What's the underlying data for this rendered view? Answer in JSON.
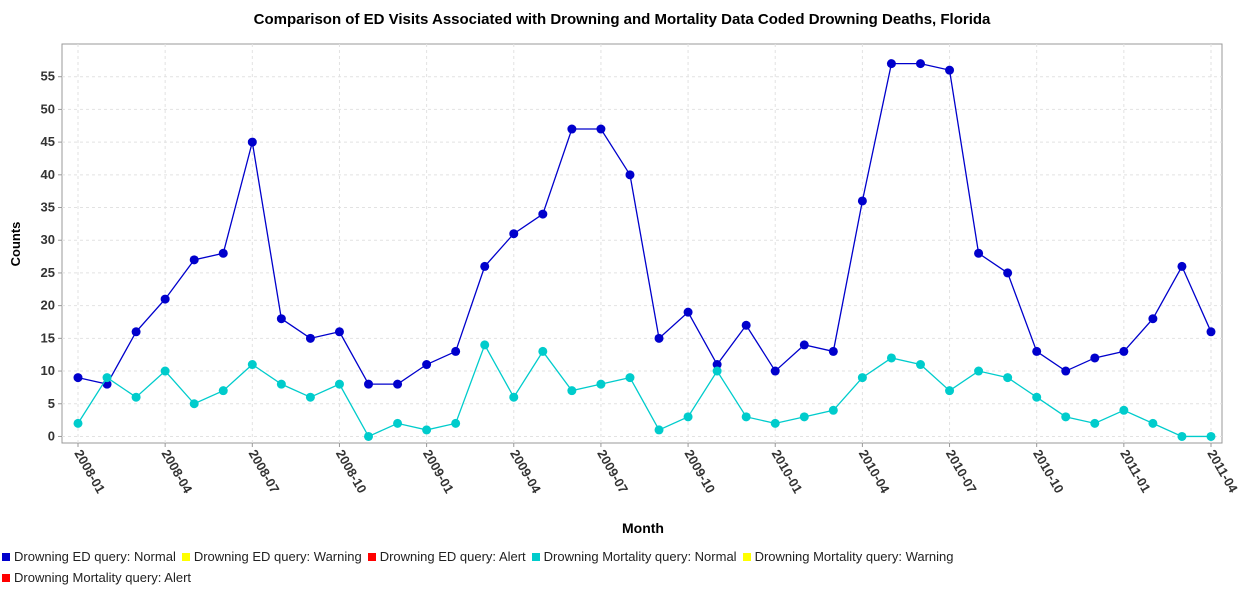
{
  "chart_data": {
    "type": "line",
    "title": "Comparison of ED Visits Associated with Drowning and Mortality Data Coded Drowning Deaths, Florida",
    "xlabel": "Month",
    "ylabel": "Counts",
    "categories": [
      "2008-01",
      null,
      null,
      "2008-04",
      null,
      null,
      "2008-07",
      null,
      null,
      "2008-10",
      null,
      null,
      "2009-01",
      null,
      null,
      "2009-04",
      null,
      null,
      "2009-07",
      null,
      null,
      "2009-10",
      null,
      null,
      "2010-01",
      null,
      null,
      "2010-04",
      null,
      null,
      "2010-07",
      null,
      null,
      "2010-10",
      null,
      null,
      "2011-01",
      null,
      null,
      "2011-04"
    ],
    "series": [
      {
        "name": "Drowning ED query: Normal",
        "color": "#0000cc",
        "values": [
          9,
          8,
          16,
          21,
          27,
          28,
          45,
          18,
          15,
          16,
          8,
          8,
          11,
          13,
          26,
          31,
          34,
          47,
          47,
          40,
          15,
          19,
          11,
          17,
          10,
          14,
          13,
          36,
          57,
          57,
          56,
          28,
          25,
          13,
          10,
          12,
          13,
          18,
          26,
          16
        ]
      },
      {
        "name": "Drowning Mortality query: Normal",
        "color": "#00cccc",
        "values": [
          2,
          9,
          6,
          10,
          5,
          7,
          11,
          8,
          6,
          8,
          0,
          2,
          1,
          2,
          14,
          6,
          13,
          7,
          8,
          9,
          1,
          3,
          10,
          3,
          2,
          3,
          4,
          9,
          12,
          11,
          7,
          10,
          9,
          6,
          3,
          2,
          4,
          2,
          0,
          0
        ]
      }
    ],
    "legend": [
      {
        "name": "Drowning ED query: Normal",
        "color": "#0000cc"
      },
      {
        "name": "Drowning ED query: Warning",
        "color": "#ffff00"
      },
      {
        "name": "Drowning ED query: Alert",
        "color": "#ff0000"
      },
      {
        "name": "Drowning Mortality query: Normal",
        "color": "#00cccc"
      },
      {
        "name": "Drowning Mortality query: Warning",
        "color": "#ffff00"
      },
      {
        "name": "Drowning Mortality query: Alert",
        "color": "#ff0000"
      }
    ],
    "ylim": [
      -1,
      60
    ],
    "yticks": [
      0,
      5,
      10,
      15,
      20,
      25,
      30,
      35,
      40,
      45,
      50,
      55
    ],
    "grid": true
  }
}
